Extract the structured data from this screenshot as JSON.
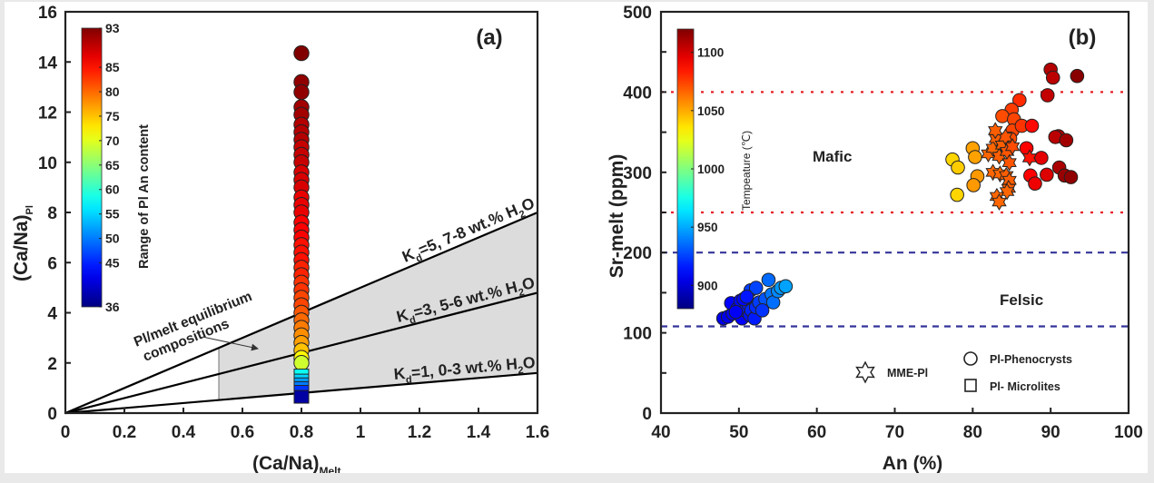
{
  "chart_data": [
    {
      "id": "a",
      "type": "scatter",
      "panel_label": "(a)",
      "xlabel": "(Ca/Na)",
      "xlabel_sub": "Melt",
      "ylabel": "(Ca/Na)",
      "ylabel_sub": "Pl",
      "xlim": [
        0,
        1.6
      ],
      "ylim": [
        0,
        16
      ],
      "xticks": [
        0,
        0.2,
        0.4,
        0.6,
        0.8,
        1,
        1.2,
        1.4,
        1.6
      ],
      "xtick_labels": [
        "0",
        "0.2",
        "0.4",
        "0.6",
        "0.8",
        "1",
        "1.2",
        "1.4",
        "1.6"
      ],
      "yticks": [
        0,
        2,
        4,
        6,
        8,
        10,
        12,
        14,
        16
      ],
      "ytick_labels": [
        "0",
        "2",
        "4",
        "6",
        "8",
        "10",
        "12",
        "14",
        "16"
      ],
      "grid": false,
      "colorbar": {
        "label": "Range of Pl An content",
        "min": 36,
        "max": 93,
        "ticks": [
          36,
          45,
          50,
          55,
          60,
          65,
          70,
          75,
          80,
          85,
          93
        ],
        "tick_labels": [
          "36",
          "45",
          "50",
          "55",
          "60",
          "65",
          "70",
          "75",
          "80",
          "85",
          "93"
        ],
        "placement": "top-left"
      },
      "lines": [
        {
          "name": "Kd=5, 7-8 wt.% H2O",
          "kd": 5,
          "label_main": "K",
          "label_sub": "d",
          "label_rest": "=5, 7-8 wt.% H",
          "label_h2o_sub": "2",
          "label_end": "O"
        },
        {
          "name": "Kd=3, 5-6 wt.% H2O",
          "kd": 3,
          "label_main": "K",
          "label_sub": "d",
          "label_rest": "=3, 5-6 wt.% H",
          "label_h2o_sub": "2",
          "label_end": "O"
        },
        {
          "name": "Kd=1, 0-3 wt.% H2O",
          "kd": 1,
          "label_main": "K",
          "label_sub": "d",
          "label_rest": "=1, 0-3 wt.% H",
          "label_h2o_sub": "2",
          "label_end": "O"
        }
      ],
      "equilibrium_region": {
        "x_from": 0.52,
        "x_to": 1.6,
        "kd_min": 1,
        "kd_max": 5,
        "color": "#dcdcdc"
      },
      "annotation": {
        "line1": "Pl/melt equilibrium",
        "line2": "compositions"
      },
      "series": [
        {
          "name": "Pl-Phenocrysts",
          "marker": "circle",
          "x": 0.8,
          "points": [
            {
              "y": 14.35,
              "an": 93
            },
            {
              "y": 13.2,
              "an": 92
            },
            {
              "y": 12.8,
              "an": 92
            },
            {
              "y": 12.2,
              "an": 91
            },
            {
              "y": 11.9,
              "an": 91
            },
            {
              "y": 11.5,
              "an": 90
            },
            {
              "y": 11.2,
              "an": 90
            },
            {
              "y": 10.9,
              "an": 90
            },
            {
              "y": 10.6,
              "an": 89
            },
            {
              "y": 10.3,
              "an": 89
            },
            {
              "y": 10.0,
              "an": 89
            },
            {
              "y": 9.6,
              "an": 88
            },
            {
              "y": 9.3,
              "an": 88
            },
            {
              "y": 9.0,
              "an": 88
            },
            {
              "y": 8.6,
              "an": 87
            },
            {
              "y": 8.3,
              "an": 87
            },
            {
              "y": 8.0,
              "an": 87
            },
            {
              "y": 7.6,
              "an": 86
            },
            {
              "y": 7.3,
              "an": 86
            },
            {
              "y": 7.0,
              "an": 86
            },
            {
              "y": 6.7,
              "an": 85
            },
            {
              "y": 6.4,
              "an": 85
            },
            {
              "y": 6.1,
              "an": 85
            },
            {
              "y": 5.8,
              "an": 84
            },
            {
              "y": 5.5,
              "an": 84
            },
            {
              "y": 5.2,
              "an": 83
            },
            {
              "y": 4.9,
              "an": 83
            },
            {
              "y": 4.6,
              "an": 82
            },
            {
              "y": 4.3,
              "an": 82
            },
            {
              "y": 4.0,
              "an": 81
            },
            {
              "y": 3.7,
              "an": 80
            },
            {
              "y": 3.4,
              "an": 79
            },
            {
              "y": 3.1,
              "an": 78
            },
            {
              "y": 2.8,
              "an": 77
            },
            {
              "y": 2.5,
              "an": 75
            },
            {
              "y": 2.2,
              "an": 72
            },
            {
              "y": 2.0,
              "an": 69
            }
          ]
        },
        {
          "name": "Pl-Microlites",
          "marker": "square",
          "x": 0.8,
          "points": [
            {
              "y": 1.5,
              "an": 58
            },
            {
              "y": 1.3,
              "an": 55
            },
            {
              "y": 1.15,
              "an": 52
            },
            {
              "y": 1.0,
              "an": 50
            },
            {
              "y": 0.85,
              "an": 46
            },
            {
              "y": 0.65,
              "an": 38
            }
          ]
        }
      ]
    },
    {
      "id": "b",
      "type": "scatter",
      "panel_label": "(b)",
      "xlabel": "An (%)",
      "ylabel": "Sr-melt (ppm)",
      "xlim": [
        40,
        100
      ],
      "ylim": [
        0,
        500
      ],
      "xticks": [
        40,
        50,
        60,
        70,
        80,
        90,
        100
      ],
      "xtick_labels": [
        "40",
        "50",
        "60",
        "70",
        "80",
        "90",
        "100"
      ],
      "yticks": [
        0,
        100,
        200,
        300,
        400,
        500
      ],
      "ytick_labels": [
        "0",
        "100",
        "200",
        "300",
        "400",
        "500"
      ],
      "grid": false,
      "colorbar": {
        "label": "Tempeature (℃)",
        "min": 880,
        "max": 1120,
        "ticks": [
          900,
          950,
          1000,
          1050,
          1100
        ],
        "tick_labels": [
          "900",
          "950",
          "1000",
          "1050",
          "1100"
        ],
        "placement": "top-left"
      },
      "reference_lines": [
        {
          "y": 400,
          "style": "dotted",
          "color": "#e8202a"
        },
        {
          "y": 250,
          "style": "dotted",
          "color": "#e8202a"
        },
        {
          "y": 200,
          "style": "dashed",
          "color": "#34349a"
        },
        {
          "y": 108,
          "style": "dashed",
          "color": "#34349a"
        }
      ],
      "region_labels": [
        {
          "text": "Mafic",
          "x": 65,
          "y": 320,
          "color": "#ee1c24"
        },
        {
          "text": "Felsic",
          "x": 88,
          "y": 143,
          "color": "#2424e0"
        }
      ],
      "legend": {
        "placement": "bottom-right",
        "entries": [
          {
            "marker": "star",
            "label": "MME-Pl"
          },
          {
            "marker": "circle",
            "label": "Pl-Phenocrysts"
          },
          {
            "marker": "square",
            "label": "Pl- Microlites"
          }
        ]
      },
      "series": [
        {
          "name": "Pl-Phenocrysts (felsic)",
          "marker": "circle",
          "points": [
            {
              "an": 48.0,
              "sr": 118,
              "t": 905
            },
            {
              "an": 48.6,
              "sr": 120,
              "t": 905
            },
            {
              "an": 49.2,
              "sr": 124,
              "t": 908
            },
            {
              "an": 49.0,
              "sr": 137,
              "t": 910
            },
            {
              "an": 49.8,
              "sr": 130,
              "t": 910
            },
            {
              "an": 50.2,
              "sr": 140,
              "t": 912
            },
            {
              "an": 50.4,
              "sr": 118,
              "t": 910
            },
            {
              "an": 50.8,
              "sr": 128,
              "t": 914
            },
            {
              "an": 51.2,
              "sr": 136,
              "t": 916
            },
            {
              "an": 51.4,
              "sr": 122,
              "t": 914
            },
            {
              "an": 51.6,
              "sr": 128,
              "t": 918
            },
            {
              "an": 52.0,
              "sr": 118,
              "t": 916
            },
            {
              "an": 52.2,
              "sr": 132,
              "t": 920
            },
            {
              "an": 52.6,
              "sr": 138,
              "t": 924
            },
            {
              "an": 51.5,
              "sr": 153,
              "t": 924
            },
            {
              "an": 52.2,
              "sr": 156,
              "t": 926
            },
            {
              "an": 53.4,
              "sr": 142,
              "t": 930
            },
            {
              "an": 53.8,
              "sr": 166,
              "t": 935
            },
            {
              "an": 54.2,
              "sr": 148,
              "t": 938
            },
            {
              "an": 54.4,
              "sr": 138,
              "t": 936
            },
            {
              "an": 55.0,
              "sr": 152,
              "t": 942
            },
            {
              "an": 55.4,
              "sr": 156,
              "t": 946
            },
            {
              "an": 56.0,
              "sr": 158,
              "t": 948
            },
            {
              "an": 53.0,
              "sr": 128,
              "t": 922
            },
            {
              "an": 50.6,
              "sr": 142,
              "t": 912
            },
            {
              "an": 49.6,
              "sr": 126,
              "t": 908
            },
            {
              "an": 51.0,
              "sr": 145,
              "t": 915
            }
          ]
        },
        {
          "name": "Pl-Phenocrysts (mafic)",
          "marker": "circle",
          "points": [
            {
              "an": 77.4,
              "sr": 316,
              "t": 1040
            },
            {
              "an": 78.1,
              "sr": 306,
              "t": 1042
            },
            {
              "an": 78.0,
              "sr": 272,
              "t": 1040
            },
            {
              "an": 80.0,
              "sr": 330,
              "t": 1052
            },
            {
              "an": 80.3,
              "sr": 319,
              "t": 1052
            },
            {
              "an": 80.6,
              "sr": 295,
              "t": 1054
            },
            {
              "an": 80.1,
              "sr": 284,
              "t": 1054
            },
            {
              "an": 90.0,
              "sr": 428,
              "t": 1108
            },
            {
              "an": 90.3,
              "sr": 418,
              "t": 1106
            },
            {
              "an": 93.4,
              "sr": 420,
              "t": 1118
            },
            {
              "an": 89.6,
              "sr": 396,
              "t": 1104
            },
            {
              "an": 86.0,
              "sr": 390,
              "t": 1080
            },
            {
              "an": 85.0,
              "sr": 378,
              "t": 1076
            },
            {
              "an": 83.8,
              "sr": 370,
              "t": 1072
            },
            {
              "an": 85.3,
              "sr": 366,
              "t": 1074
            },
            {
              "an": 85.1,
              "sr": 352,
              "t": 1074
            },
            {
              "an": 86.3,
              "sr": 358,
              "t": 1078
            },
            {
              "an": 87.6,
              "sr": 358,
              "t": 1088
            },
            {
              "an": 91.0,
              "sr": 345,
              "t": 1108
            },
            {
              "an": 90.6,
              "sr": 344,
              "t": 1106
            },
            {
              "an": 92.0,
              "sr": 340,
              "t": 1112
            },
            {
              "an": 84.8,
              "sr": 342,
              "t": 1072
            },
            {
              "an": 86.9,
              "sr": 330,
              "t": 1090
            },
            {
              "an": 88.8,
              "sr": 318,
              "t": 1096
            },
            {
              "an": 87.4,
              "sr": 296,
              "t": 1090
            },
            {
              "an": 89.5,
              "sr": 297,
              "t": 1098
            },
            {
              "an": 91.1,
              "sr": 306,
              "t": 1110
            },
            {
              "an": 91.8,
              "sr": 296,
              "t": 1114
            },
            {
              "an": 92.6,
              "sr": 294,
              "t": 1116
            },
            {
              "an": 88.0,
              "sr": 286,
              "t": 1094
            }
          ]
        },
        {
          "name": "MME-Pl",
          "marker": "star",
          "points": [
            {
              "an": 82.0,
              "sr": 323,
              "t": 1066
            },
            {
              "an": 82.6,
              "sr": 330,
              "t": 1066
            },
            {
              "an": 83.0,
              "sr": 342,
              "t": 1068
            },
            {
              "an": 83.4,
              "sr": 320,
              "t": 1068
            },
            {
              "an": 83.8,
              "sr": 334,
              "t": 1068
            },
            {
              "an": 84.2,
              "sr": 344,
              "t": 1070
            },
            {
              "an": 84.4,
              "sr": 326,
              "t": 1070
            },
            {
              "an": 84.7,
              "sr": 312,
              "t": 1070
            },
            {
              "an": 85.1,
              "sr": 332,
              "t": 1072
            },
            {
              "an": 82.6,
              "sr": 300,
              "t": 1066
            },
            {
              "an": 83.5,
              "sr": 298,
              "t": 1066
            },
            {
              "an": 84.3,
              "sr": 296,
              "t": 1068
            },
            {
              "an": 84.7,
              "sr": 290,
              "t": 1068
            },
            {
              "an": 84.6,
              "sr": 280,
              "t": 1068
            },
            {
              "an": 84.4,
              "sr": 276,
              "t": 1066
            },
            {
              "an": 83.1,
              "sr": 270,
              "t": 1066
            },
            {
              "an": 83.4,
              "sr": 263,
              "t": 1066
            },
            {
              "an": 87.3,
              "sr": 318,
              "t": 1086
            },
            {
              "an": 82.9,
              "sr": 352,
              "t": 1068
            }
          ]
        }
      ]
    }
  ]
}
